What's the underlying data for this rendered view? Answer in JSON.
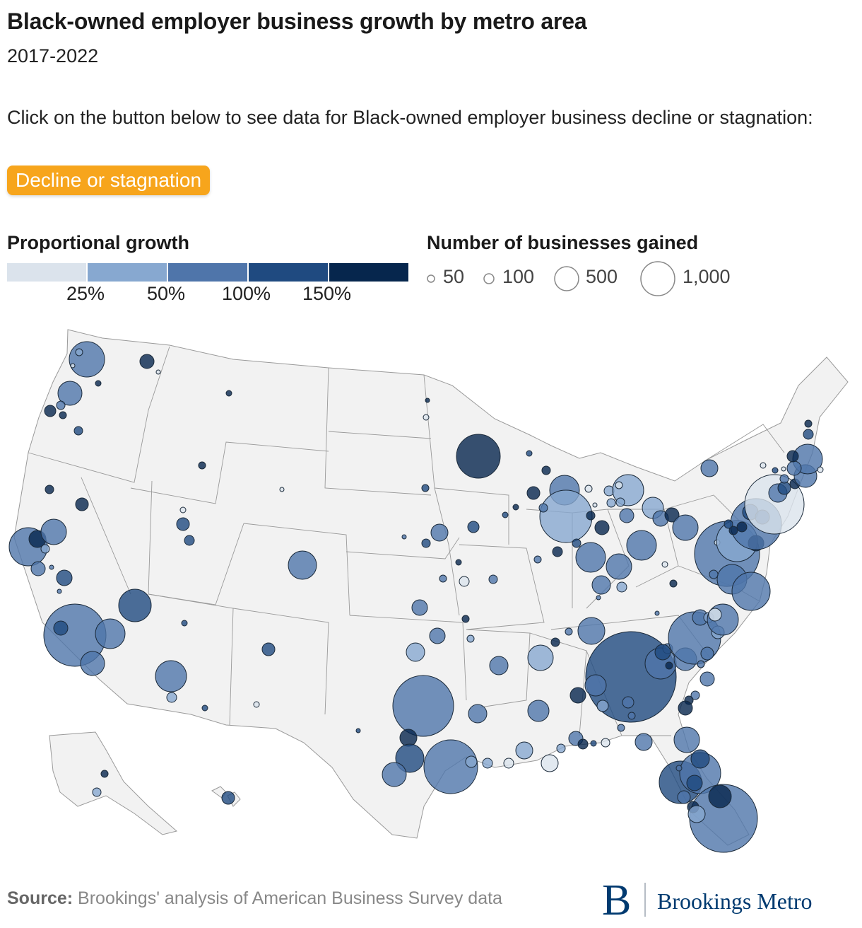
{
  "title": "Black-owned employer business growth by metro area",
  "subtitle": "2017-2022",
  "instructions": "Click on the button below to see data for Black-owned employer business decline or stagnation:",
  "toggle_button": "Decline or stagnation",
  "colors": {
    "toggle": "#f7a51c",
    "scale": [
      "#dbe3ec",
      "#87a8d0",
      "#4f75aa",
      "#1f4a80",
      "#06264d"
    ],
    "land": "#f2f2f2",
    "borders": "#9a9a9a",
    "brand": "#003a70"
  },
  "color_legend": {
    "title": "Proportional growth",
    "ticks": [
      "25%",
      "50%",
      "100%",
      "150%"
    ]
  },
  "size_legend": {
    "title": "Number of businesses gained",
    "items": [
      {
        "label": "50",
        "value": 50
      },
      {
        "label": "100",
        "value": 100
      },
      {
        "label": "500",
        "value": 500
      },
      {
        "label": "1,000",
        "value": 1000
      }
    ]
  },
  "source": {
    "label": "Source:",
    "text": " Brookings' analysis of American Business Survey data"
  },
  "brand": {
    "mark": "B",
    "name": "Brookings Metro"
  }
}
